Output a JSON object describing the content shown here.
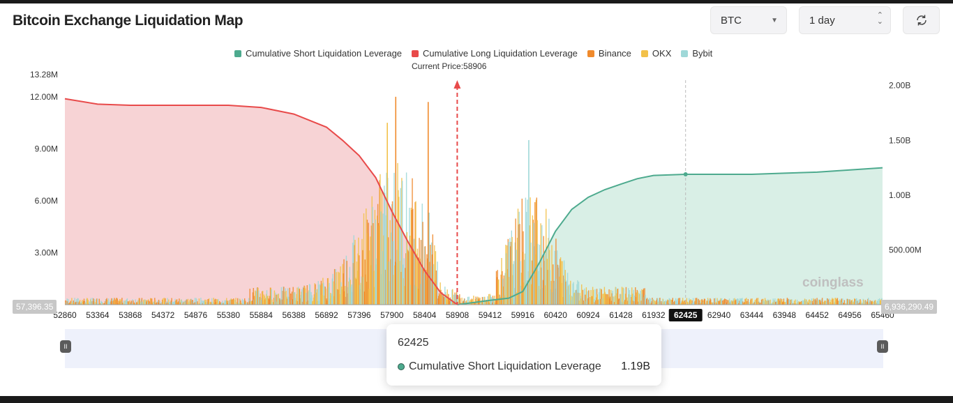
{
  "header": {
    "title": "Bitcoin Exchange Liquidation Map",
    "symbol_select": "BTC",
    "range_select": "1 day"
  },
  "legend": [
    {
      "label": "Cumulative Short Liquidation Leverage",
      "color": "#4daa8e"
    },
    {
      "label": "Cumulative Long Liquidation Leverage",
      "color": "#e84a4a"
    },
    {
      "label": "Binance",
      "color": "#f08a2c"
    },
    {
      "label": "OKX",
      "color": "#f2c14a"
    },
    {
      "label": "Bybit",
      "color": "#9fd8d8"
    }
  ],
  "current_price_label": "Current Price:58906",
  "edge_labels": {
    "left": "57,396.35",
    "right": "6,936,290.49"
  },
  "watermark": "coinglass",
  "tooltip": {
    "x_value": "62425",
    "series": "Cumulative Short Liquidation Leverage",
    "value": "1.19B"
  },
  "chart_data": {
    "type": "bar",
    "title": "Bitcoin Exchange Liquidation Map",
    "x_ticks": [
      "52860",
      "53364",
      "53868",
      "54372",
      "54876",
      "55380",
      "55884",
      "56388",
      "56892",
      "57396",
      "57900",
      "58404",
      "58908",
      "59412",
      "59916",
      "60420",
      "60924",
      "61428",
      "61932",
      "62425",
      "62940",
      "63444",
      "63948",
      "64452",
      "64956",
      "65460"
    ],
    "x_range": [
      52860,
      65460
    ],
    "highlighted_tick": "62425",
    "current_price": 58906,
    "y_left": {
      "ticks": [
        "13.28M",
        "12.00M",
        "9.00M",
        "6.00M",
        "3.00M"
      ],
      "range": [
        0,
        13280000
      ]
    },
    "y_right": {
      "ticks": [
        "2.00B",
        "1.50B",
        "1.00B",
        "500.00M"
      ],
      "range": [
        0,
        2100000000
      ]
    },
    "series": [
      {
        "name": "Cumulative Long Liquidation Leverage",
        "axis": "right",
        "x": [
          52860,
          53364,
          53868,
          54372,
          54876,
          55380,
          55884,
          56388,
          56892,
          57140,
          57396,
          57650,
          57900,
          58150,
          58404,
          58650,
          58908
        ],
        "values": [
          1880000000.0,
          1830000000.0,
          1820000000.0,
          1820000000.0,
          1820000000.0,
          1820000000.0,
          1800000000.0,
          1740000000.0,
          1620000000.0,
          1500000000.0,
          1360000000.0,
          1160000000.0,
          850000000.0,
          570000000.0,
          310000000.0,
          110000000.0,
          0.0
        ]
      },
      {
        "name": "Cumulative Short Liquidation Leverage",
        "axis": "right",
        "x": [
          58908,
          59412,
          59700,
          59916,
          60170,
          60420,
          60670,
          60924,
          61180,
          61428,
          61680,
          61932,
          62425,
          62940,
          63444,
          63948,
          64452,
          64956,
          65460
        ],
        "values": [
          0.0,
          40000000.0,
          60000000.0,
          120000000.0,
          380000000.0,
          670000000.0,
          870000000.0,
          980000000.0,
          1050000000.0,
          1100000000.0,
          1150000000.0,
          1180000000.0,
          1190000000.0,
          1190000000.0,
          1190000000.0,
          1200000000.0,
          1210000000.0,
          1230000000.0,
          1250000000.0
        ]
      }
    ],
    "exchange_peaks": [
      {
        "exchange": "Binance",
        "x": 57950,
        "value": 12000000
      },
      {
        "exchange": "Binance",
        "x": 58450,
        "value": 11700000
      },
      {
        "exchange": "OKX",
        "x": 57820,
        "value": 10500000
      },
      {
        "exchange": "Bybit",
        "x": 60000,
        "value": 9500000
      }
    ]
  }
}
